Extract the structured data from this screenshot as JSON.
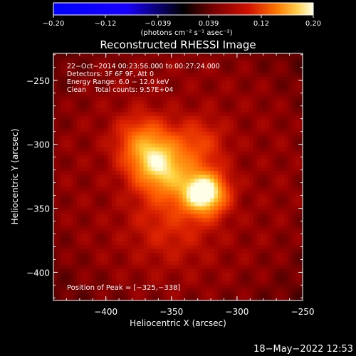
{
  "chart_data": {
    "type": "heatmap",
    "title": "Reconstructed RHESSI Image",
    "xlabel": "Heliocentric X (arcsec)",
    "ylabel": "Heliocentric Y (arcsec)",
    "xlim": [
      -440,
      -250
    ],
    "ylim": [
      -422,
      -229
    ],
    "x_ticks": [
      -400,
      -350,
      -300,
      -250
    ],
    "y_ticks": [
      -250,
      -300,
      -350,
      -400
    ],
    "x_tick_labels": [
      "−400",
      "−350",
      "−300",
      "−250"
    ],
    "y_tick_labels": [
      "−250",
      "−300",
      "−350",
      "−400"
    ],
    "colorbar": {
      "range": [
        -0.2,
        0.2
      ],
      "ticks": [
        -0.2,
        -0.12,
        -0.039,
        0.039,
        0.12,
        0.2
      ],
      "tick_labels": [
        "−0.20",
        "−0.12",
        "−0.039",
        "0.039",
        "0.12",
        "0.20"
      ],
      "unit_label": "(photons cm⁻² s⁻¹ asec⁻²)"
    },
    "info_lines": [
      "22−Oct−2014 00:23:56.000 to 00:27:24.000",
      "Detectors: 3F 6F 9F, Att 0",
      "Energy Range: 6.0 − 12.0 keV",
      "Clean    Total counts: 9.57E+04"
    ],
    "peak_label": "Position of Peak = [−325,−338]",
    "sources": [
      {
        "x": -325,
        "y": -338,
        "amp": 1.0
      },
      {
        "x": -362,
        "y": -314,
        "amp": 0.55
      },
      {
        "x": -372,
        "y": -297,
        "amp": 0.35
      },
      {
        "x": -350,
        "y": -326,
        "amp": 0.3
      },
      {
        "x": -330,
        "y": -300,
        "amp": 0.25
      },
      {
        "x": -350,
        "y": -360,
        "amp": 0.18
      }
    ]
  },
  "footer": {
    "timestamp": "18−May−2022 12:53"
  },
  "colors": {
    "background": "#000000",
    "frame": "#ffffff"
  }
}
